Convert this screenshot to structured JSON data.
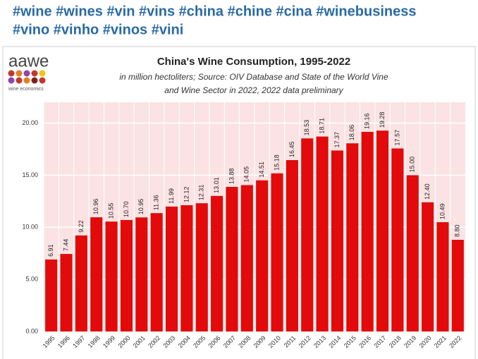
{
  "post": {
    "hashtags": [
      "#wine #wines #vin #vins #china #chine #cina #winebusiness",
      "#vino #vinho #vinos #vini"
    ]
  },
  "logo": {
    "name": "aawe",
    "tagline": "wine economics"
  },
  "chart_data": {
    "type": "bar",
    "title": "China's Wine Consumption, 1995-2022",
    "subtitle": [
      "in million hectoliters; Source: OIV Database and State of the World Vine",
      "and Wine Sector in 2022, 2022 data preliminary"
    ],
    "categories": [
      "1995",
      "1996",
      "1997",
      "1998",
      "1999",
      "2000",
      "2001",
      "2002",
      "2003",
      "2004",
      "2005",
      "2006",
      "2007",
      "2008",
      "2009",
      "2010",
      "2011",
      "2012",
      "2013",
      "2014",
      "2015",
      "2016",
      "2017",
      "2018",
      "2019",
      "2020",
      "2021",
      "2022"
    ],
    "values": [
      6.91,
      7.44,
      9.22,
      10.96,
      10.55,
      10.7,
      10.95,
      11.36,
      11.99,
      12.12,
      12.31,
      13.01,
      13.88,
      14.05,
      14.51,
      15.18,
      16.45,
      18.53,
      18.71,
      17.37,
      18.06,
      19.16,
      19.28,
      17.57,
      15.0,
      12.4,
      10.49,
      8.8
    ],
    "value_labels": [
      "6.91",
      "7.44",
      "9.22",
      "10.96",
      "10.55",
      "10.70",
      "10.95",
      "11.36",
      "11.99",
      "12.12",
      "12.31",
      "13.01",
      "13.88",
      "14.05",
      "14.51",
      "15.18",
      "16.45",
      "18.53",
      "18.71",
      "17.37",
      "18.06",
      "19.16",
      "19.28",
      "17.57",
      "15.00",
      "12.40",
      "10.49",
      "8.80"
    ],
    "color": "#e20a0a",
    "ylim": [
      0,
      22
    ],
    "yticks": [
      {
        "value": 0,
        "label": "0.00"
      },
      {
        "value": 5,
        "label": "5.00"
      },
      {
        "value": 10,
        "label": "10.00"
      },
      {
        "value": 15,
        "label": "15.00"
      },
      {
        "value": 20,
        "label": "20.00"
      }
    ],
    "grid": true
  }
}
